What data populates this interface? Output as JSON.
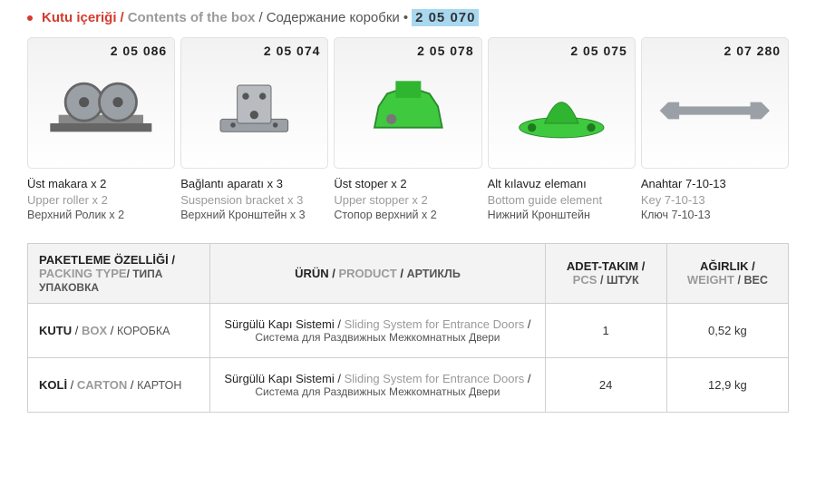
{
  "header": {
    "tr": "Kutu içeriği",
    "en": "Contents of the box",
    "ru": "Содержание коробки",
    "code": "2 05 070"
  },
  "products": [
    {
      "code": "2 05 086",
      "label_tr": "Üst makara x 2",
      "label_en": "Upper roller x 2",
      "label_ru": "Верхний Ролик х 2",
      "icon": "roller",
      "color": "#9aa0a6"
    },
    {
      "code": "2 05 074",
      "label_tr": "Bağlantı aparatı x 3",
      "label_en": "Suspension bracket x 3",
      "label_ru": "Верхний Кронштейн х 3",
      "icon": "bracket",
      "color": "#9aa0a6"
    },
    {
      "code": "2 05 078",
      "label_tr": "Üst stoper x 2",
      "label_en": "Upper stopper x 2",
      "label_ru": "Стопор верхний х 2",
      "icon": "stopper",
      "color": "#3fc93f"
    },
    {
      "code": "2 05 075",
      "label_tr": "Alt kılavuz elemanı",
      "label_en": "Bottom guide element",
      "label_ru": "Нижний Кронштейн",
      "icon": "guide",
      "color": "#3fc93f"
    },
    {
      "code": "2 07 280",
      "label_tr": "Anahtar 7-10-13",
      "label_en": "Key 7-10-13",
      "label_ru": "Ключ  7-10-13",
      "icon": "wrench",
      "color": "#9aa0a6"
    }
  ],
  "table": {
    "headers": {
      "packing": {
        "tr": "PAKETLEME ÖZELLİĞİ /",
        "en": "PACKING TYPE",
        "ru": "/ ТИПА УПАКОВКА"
      },
      "product": {
        "tr": "ÜRÜN",
        "en": "PRODUCT",
        "ru": "АРТИКЛЬ"
      },
      "pcs": {
        "tr": "ADET-TAKIM /",
        "en": "PCS",
        "ru": "/ ШТУК"
      },
      "weight": {
        "tr": "AĞIRLIK /",
        "en": "WEIGHT",
        "ru": "/ ВЕС"
      }
    },
    "rows": [
      {
        "packing": {
          "tr": "KUTU",
          "en": "BOX",
          "ru": "КОРОБКА"
        },
        "product": {
          "tr": "Sürgülü Kapı Sistemi",
          "en": "Sliding System for Entrance Doors",
          "ru": "Система для Раздвижных Межкомнатных Двери"
        },
        "pcs": "1",
        "weight": "0,52 kg"
      },
      {
        "packing": {
          "tr": "KOLİ",
          "en": "CARTON",
          "ru": "КАРТОН"
        },
        "product": {
          "tr": "Sürgülü Kapı Sistemi",
          "en": "Sliding System for Entrance Doors",
          "ru": "Система для Раздвижных Межкомнатных Двери"
        },
        "pcs": "24",
        "weight": "12,9 kg"
      }
    ]
  },
  "colors": {
    "red": "#d43a2e",
    "gray": "#9a9a9a",
    "dark": "#333333",
    "highlight_bg": "#a8d8f0",
    "card_border": "#e2e2e2",
    "table_border": "#cfcfcf",
    "header_bg": "#f3f3f3",
    "green": "#3fc93f",
    "metal": "#9aa0a6"
  }
}
